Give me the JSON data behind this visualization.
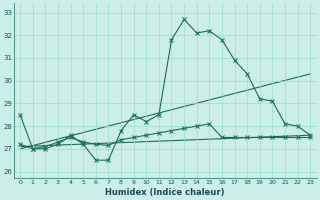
{
  "title": "",
  "xlabel": "Humidex (Indice chaleur)",
  "bg_color": "#cceee8",
  "grid_color": "#99ddcc",
  "line_color": "#1a6b5a",
  "xlim": [
    -0.5,
    23.5
  ],
  "ylim": [
    25.7,
    33.4
  ],
  "yticks": [
    26,
    27,
    28,
    29,
    30,
    31,
    32,
    33
  ],
  "xticks": [
    0,
    1,
    2,
    3,
    4,
    5,
    6,
    7,
    8,
    9,
    10,
    11,
    12,
    13,
    14,
    15,
    16,
    17,
    18,
    19,
    20,
    21,
    22,
    23
  ],
  "series1_x": [
    0,
    1,
    2,
    3,
    4,
    5,
    6,
    7,
    8,
    9,
    10,
    11,
    12,
    13,
    14,
    15,
    16,
    17,
    18,
    19,
    20,
    21,
    22,
    23
  ],
  "series1_y": [
    28.5,
    27.0,
    27.0,
    27.2,
    27.6,
    27.2,
    26.5,
    26.5,
    27.8,
    28.5,
    28.2,
    28.5,
    31.8,
    32.7,
    32.1,
    32.2,
    31.8,
    30.9,
    30.3,
    29.2,
    29.1,
    28.1,
    28.0,
    27.6
  ],
  "series2_x": [
    0,
    1,
    2,
    3,
    4,
    5,
    6,
    7,
    8,
    9,
    10,
    11,
    12,
    13,
    14,
    15,
    16,
    17,
    18,
    19,
    20,
    21,
    22,
    23
  ],
  "series2_y": [
    27.2,
    27.0,
    27.1,
    27.3,
    27.5,
    27.3,
    27.2,
    27.15,
    27.4,
    27.5,
    27.6,
    27.7,
    27.8,
    27.9,
    28.0,
    28.1,
    27.5,
    27.5,
    27.5,
    27.5,
    27.5,
    27.5,
    27.5,
    27.5
  ],
  "trend1": [
    27.0,
    30.3
  ],
  "trend1_x": [
    0,
    23
  ],
  "trend2": [
    27.1,
    27.6
  ],
  "trend2_x": [
    0,
    23
  ]
}
